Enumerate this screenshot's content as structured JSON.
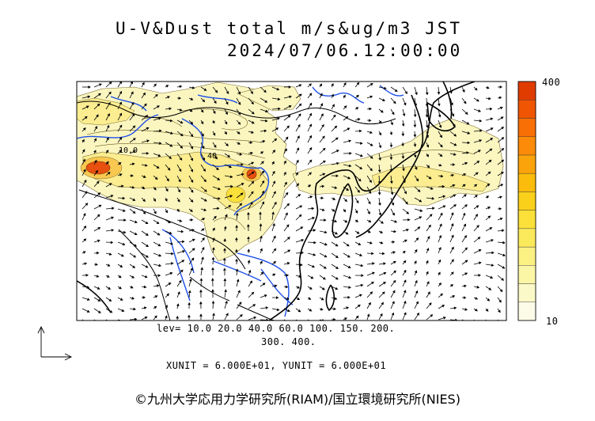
{
  "title": {
    "line1": "U-V&Dust total m/s&ug/m3 JST",
    "line2": "2024/07/06.12:00:00"
  },
  "levels": {
    "line1": "lev= 10.0 20.0 40.0 60.0 100. 150. 200.",
    "line2": "300. 400."
  },
  "units": "XUNIT = 6.000E+01, YUNIT = 6.000E+01",
  "credit": "©九州大学応用力学研究所(RIAM)/国立環境研究所(NIES)",
  "colorbar": {
    "max_label": "400",
    "min_label": "10",
    "colors": [
      "#fbfbe8",
      "#fbf9c8",
      "#fbf5a6",
      "#fbf082",
      "#fbe95c",
      "#fbe03a",
      "#fbd01a",
      "#fbbc0c",
      "#fba30a",
      "#fb8b08",
      "#f87005",
      "#f05503",
      "#e03c00"
    ]
  },
  "map_labels": {
    "contour_a": "10.0",
    "contour_b": "40"
  },
  "colors": {
    "river": "#1e50e8",
    "coast": "#000000",
    "dust_light": "#fbf6c0",
    "dust_mid": "#fbed90",
    "dust_high": "#f8c850",
    "dust_peak": "#e85010"
  }
}
